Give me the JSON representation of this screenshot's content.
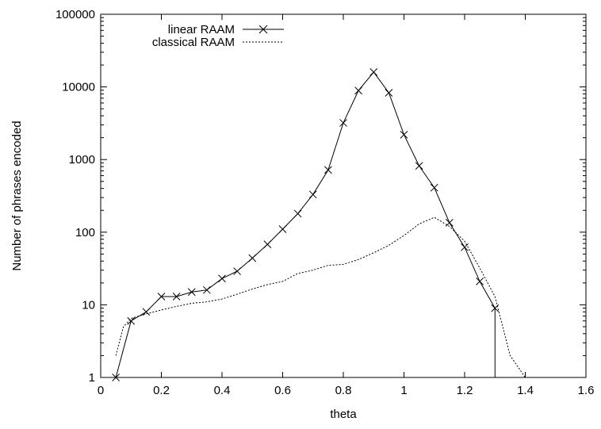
{
  "chart_data": {
    "type": "line",
    "title": "",
    "xlabel": "theta",
    "ylabel": "Number of phrases encoded",
    "xlim": [
      0,
      1.6
    ],
    "ylim": [
      1,
      100000
    ],
    "yscale": "log",
    "grid": false,
    "legend_position": "top-left",
    "x_ticks": [
      "0",
      "0.2",
      "0.4",
      "0.6",
      "0.8",
      "1",
      "1.2",
      "1.4",
      "1.6"
    ],
    "y_ticks": [
      "1",
      "10",
      "100",
      "1000",
      "10000",
      "100000"
    ],
    "series": [
      {
        "name": "linear RAAM",
        "style": "solid",
        "marker": "x",
        "x": [
          0.05,
          0.1,
          0.15,
          0.2,
          0.25,
          0.3,
          0.35,
          0.4,
          0.45,
          0.5,
          0.55,
          0.6,
          0.65,
          0.7,
          0.75,
          0.8,
          0.85,
          0.9,
          0.95,
          1.0,
          1.05,
          1.1,
          1.15,
          1.2,
          1.25,
          1.3
        ],
        "y": [
          1,
          6,
          8,
          13,
          13,
          15,
          16,
          23,
          29,
          44,
          68,
          110,
          180,
          330,
          720,
          3200,
          8900,
          16000,
          8300,
          2200,
          820,
          410,
          135,
          62,
          21,
          9
        ]
      },
      {
        "name": "classical RAAM",
        "style": "dotted",
        "marker": "none",
        "x": [
          0.05,
          0.075,
          0.1,
          0.15,
          0.2,
          0.25,
          0.3,
          0.35,
          0.4,
          0.45,
          0.5,
          0.55,
          0.6,
          0.65,
          0.7,
          0.75,
          0.8,
          0.85,
          0.9,
          0.95,
          1.0,
          1.05,
          1.1,
          1.15,
          1.2,
          1.25,
          1.3,
          1.35,
          1.4
        ],
        "y": [
          2,
          5,
          6.5,
          7.5,
          8.5,
          9.5,
          10.5,
          11,
          12,
          14,
          16.5,
          19,
          21,
          27,
          30,
          35,
          36,
          42,
          52,
          66,
          90,
          130,
          160,
          120,
          75,
          32,
          13,
          2,
          1
        ]
      }
    ]
  }
}
